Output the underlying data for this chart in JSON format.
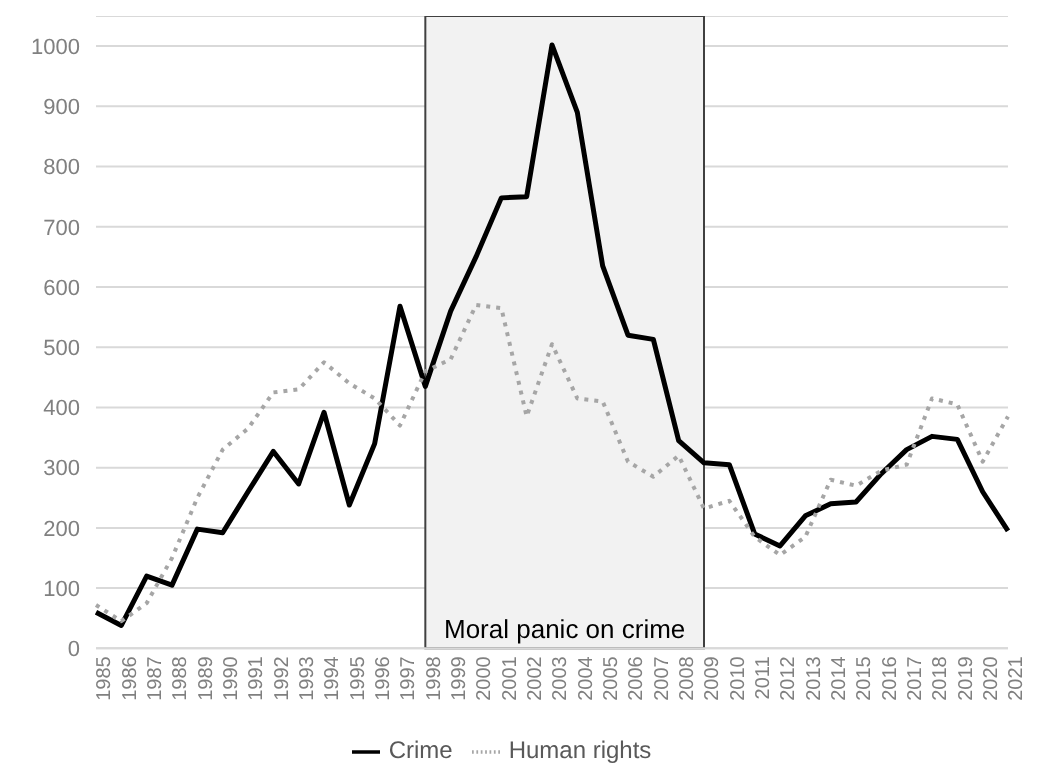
{
  "chart_data": {
    "type": "line",
    "categories": [
      "1985",
      "1986",
      "1987",
      "1988",
      "1989",
      "1990",
      "1991",
      "1992",
      "1993",
      "1994",
      "1995",
      "1996",
      "1997",
      "1998",
      "1999",
      "2000",
      "2001",
      "2002",
      "2003",
      "2004",
      "2005",
      "2006",
      "2007",
      "2008",
      "2009",
      "2010",
      "2011",
      "2012",
      "2013",
      "2014",
      "2015",
      "2016",
      "2017",
      "2018",
      "2019",
      "2020",
      "2021"
    ],
    "series": [
      {
        "name": "Crime",
        "color": "#000000",
        "line_style": "solid",
        "values": [
          60,
          38,
          120,
          105,
          198,
          192,
          260,
          327,
          273,
          392,
          238,
          340,
          568,
          435,
          560,
          650,
          748,
          750,
          1002,
          890,
          635,
          520,
          513,
          345,
          308,
          305,
          190,
          170,
          220,
          240,
          243,
          290,
          330,
          352,
          347,
          260,
          195
        ]
      },
      {
        "name": "Human rights",
        "color": "#a6a6a6",
        "line_style": "dotted",
        "values": [
          72,
          45,
          75,
          150,
          250,
          330,
          365,
          425,
          430,
          475,
          440,
          415,
          370,
          460,
          480,
          570,
          565,
          385,
          505,
          415,
          410,
          310,
          285,
          320,
          232,
          245,
          185,
          155,
          185,
          280,
          270,
          295,
          305,
          415,
          405,
          310,
          385
        ]
      }
    ],
    "ylim": [
      0,
      1050
    ],
    "yticks": [
      0,
      100,
      200,
      300,
      400,
      500,
      600,
      700,
      800,
      900,
      1000
    ],
    "grid": "y",
    "legend": "bottom",
    "marker": "none",
    "bands": [
      {
        "axis": "x",
        "from": "1998",
        "to": "2009",
        "label": "Moral panic on crime",
        "color": "#f2f2f2"
      }
    ]
  }
}
